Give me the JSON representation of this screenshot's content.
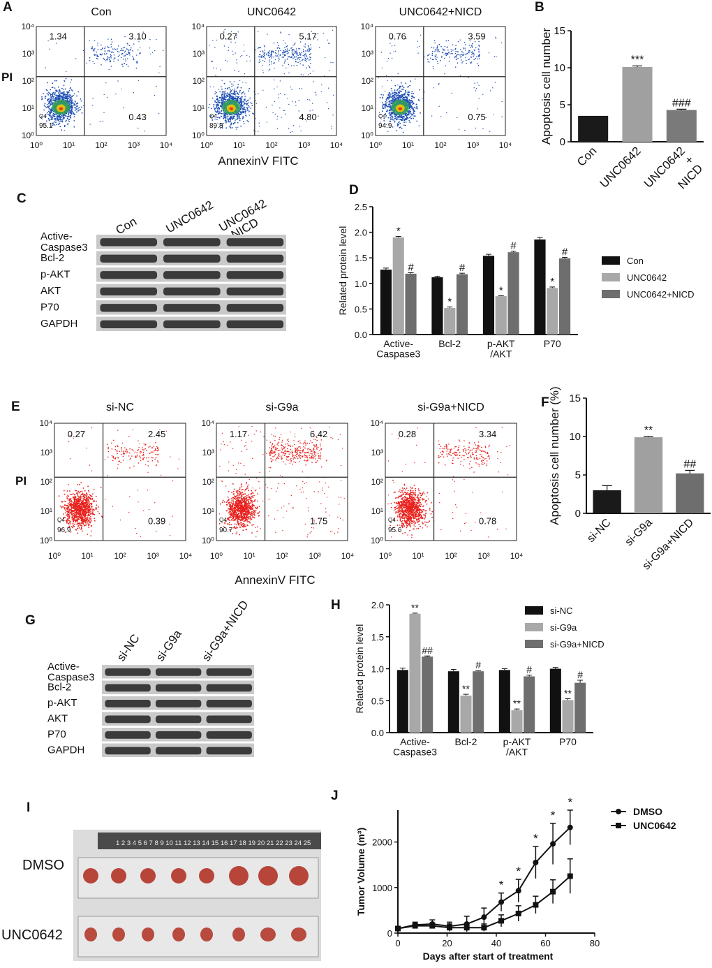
{
  "panel_letters": [
    "A",
    "B",
    "C",
    "D",
    "E",
    "F",
    "G",
    "H",
    "I",
    "J"
  ],
  "flow": {
    "A": {
      "ylabel": "PI",
      "xlabel": "AnnexinV   FITC",
      "color": "#1f4fb4",
      "plots": [
        {
          "title": "Con",
          "q_ul": "1.34",
          "q_ur": "3.10",
          "q_lr": "0.43",
          "q4_tag": "Q4",
          "q4_val": "95.1"
        },
        {
          "title": "UNC0642",
          "q_ul": "0.27",
          "q_ur": "5.17",
          "q_lr": "4.80",
          "q4_tag": "Q4",
          "q4_val": "89.8"
        },
        {
          "title": "UNC0642+NICD",
          "q_ul": "0.76",
          "q_ur": "3.59",
          "q_lr": "0.75",
          "q4_tag": "Q4",
          "q4_val": "94.9"
        }
      ]
    },
    "E": {
      "ylabel": "PI",
      "xlabel": "AnnexinV   FITC",
      "color": "#e8201c",
      "plots": [
        {
          "title": "si-NC",
          "q_ul": "0.27",
          "q_ur": "2.45",
          "q_lr": "0.39",
          "q4_tag": "Q4",
          "q4_val": "96.9"
        },
        {
          "title": "si-G9a",
          "q_ul": "1.17",
          "q_ur": "6.42",
          "q_lr": "1.75",
          "q4_tag": "Q4",
          "q4_val": "90.7"
        },
        {
          "title": "si-G9a+NICD",
          "q_ul": "0.28",
          "q_ur": "3.34",
          "q_lr": "0.78",
          "q4_tag": "Q4",
          "q4_val": "95.6"
        }
      ]
    },
    "xticks": [
      "10⁰",
      "10¹",
      "10²",
      "10³",
      "10⁴"
    ],
    "yticks": [
      "10⁰",
      "10¹",
      "10²",
      "10³",
      "10⁴"
    ]
  },
  "blots": {
    "C": {
      "lanes": [
        "Con",
        "UNC0642",
        "UNC0642\n+NICD"
      ],
      "rows": [
        "Active-\nCaspase3",
        "Bcl-2",
        "p-AKT",
        "AKT",
        "P70",
        "GAPDH"
      ]
    },
    "G": {
      "lanes": [
        "si-NC",
        "si-G9a",
        "si-G9a+NICD"
      ],
      "rows": [
        "Active-\nCaspase3",
        "Bcl-2",
        "p-AKT",
        "AKT",
        "P70",
        "GAPDH"
      ]
    }
  },
  "photo": {
    "rows": [
      "DMSO",
      "UNC0642"
    ],
    "ruler": "1 2 3 4 5 6 7 8 9 10 11 12 13 14 15 16 17 18 19 20 21 22 23 24 25"
  },
  "chart_data": [
    {
      "panel": "B",
      "type": "bar",
      "categories": [
        "Con",
        "UNC0642",
        "UNC0642\n+\nNICD"
      ],
      "values": [
        3.5,
        10.1,
        4.3
      ],
      "errors": [
        0,
        0.15,
        0.1
      ],
      "annotations": [
        "",
        "***",
        "###"
      ],
      "ylabel": "Apoptosis cell number",
      "ylim": [
        0,
        15
      ],
      "yticks": [
        0,
        5,
        10,
        15
      ],
      "colors": [
        "#1a1a1a",
        "#a0a0a0",
        "#7a7a7a"
      ]
    },
    {
      "panel": "D",
      "type": "bar",
      "categories": [
        "Active-\nCaspase3",
        "Bcl-2",
        "p-AKT\n/AKT",
        "P70"
      ],
      "series": [
        {
          "name": "Con",
          "values": [
            1.27,
            1.12,
            1.54,
            1.86
          ],
          "errors": [
            0.03,
            0.02,
            0.03,
            0.04
          ],
          "annotations": [
            "",
            "",
            "",
            ""
          ]
        },
        {
          "name": "UNC0642",
          "values": [
            1.9,
            0.52,
            0.75,
            0.91
          ],
          "errors": [
            0.02,
            0.02,
            0.01,
            0.02
          ],
          "annotations": [
            "*",
            "*",
            "*",
            "*"
          ]
        },
        {
          "name": "UNC0642+NICD",
          "values": [
            1.19,
            1.18,
            1.61,
            1.49
          ],
          "errors": [
            0.02,
            0.02,
            0.02,
            0.02
          ],
          "annotations": [
            "#",
            "#",
            "#",
            "#"
          ]
        }
      ],
      "ylabel": "Related protein level",
      "ylim": [
        0,
        2.5
      ],
      "yticks": [
        "0.0",
        "0.5",
        "1.0",
        "1.5",
        "2.0",
        "2.5"
      ],
      "colors": [
        "#111111",
        "#a8a8a8",
        "#6e6e6e"
      ]
    },
    {
      "panel": "F",
      "type": "bar",
      "categories": [
        "si-NC",
        "si-G9a",
        "si-G9a+NICD"
      ],
      "values": [
        3.0,
        9.9,
        5.2
      ],
      "errors": [
        0.6,
        0.1,
        0.4
      ],
      "annotations": [
        "",
        "**",
        "##"
      ],
      "ylabel": "Apoptosis cell number (%)",
      "ylim": [
        0,
        15
      ],
      "yticks": [
        0,
        5,
        10,
        15
      ],
      "colors": [
        "#1a1a1a",
        "#a0a0a0",
        "#6e6e6e"
      ]
    },
    {
      "panel": "H",
      "type": "bar",
      "categories": [
        "Active-\nCaspase3",
        "Bcl-2",
        "p-AKT\n/AKT",
        "P70"
      ],
      "series": [
        {
          "name": "si-NC",
          "values": [
            0.98,
            0.96,
            0.98,
            1.0
          ],
          "errors": [
            0.03,
            0.03,
            0.02,
            0.02
          ],
          "annotations": [
            "",
            "",
            "",
            ""
          ]
        },
        {
          "name": "si-G9a",
          "values": [
            1.86,
            0.58,
            0.35,
            0.51
          ],
          "errors": [
            0.01,
            0.02,
            0.02,
            0.02
          ],
          "annotations": [
            "**",
            "**",
            "**",
            "**"
          ]
        },
        {
          "name": "si-G9a+NICD",
          "values": [
            1.19,
            0.96,
            0.88,
            0.78
          ],
          "errors": [
            0.01,
            0.01,
            0.02,
            0.04
          ],
          "annotations": [
            "##",
            "#",
            "#",
            "#"
          ]
        }
      ],
      "ylabel": "Related protein level",
      "ylim": [
        0,
        2.0
      ],
      "yticks": [
        "0.0",
        "0.5",
        "1.0",
        "1.5",
        "2.0"
      ],
      "colors": [
        "#111111",
        "#a8a8a8",
        "#6e6e6e"
      ]
    },
    {
      "panel": "J",
      "type": "line",
      "x": [
        0,
        7,
        14,
        21,
        28,
        35,
        42,
        49,
        56,
        63,
        70
      ],
      "series": [
        {
          "name": "DMSO",
          "marker": "circle",
          "values": [
            100,
            180,
            200,
            150,
            200,
            350,
            680,
            930,
            1550,
            1960,
            2320
          ],
          "errors": [
            30,
            60,
            90,
            90,
            170,
            200,
            200,
            250,
            350,
            450,
            380
          ]
        },
        {
          "name": "UNC0642",
          "marker": "square",
          "values": [
            100,
            160,
            160,
            120,
            120,
            120,
            270,
            430,
            620,
            910,
            1250
          ],
          "errors": [
            30,
            50,
            60,
            80,
            90,
            80,
            130,
            170,
            190,
            260,
            380
          ]
        }
      ],
      "annotations_at_x": [
        42,
        49,
        56,
        63,
        70
      ],
      "annotation": "*",
      "xlabel": "Days after start of treatment",
      "ylabel": "Tumor Volume (m³)",
      "xlim": [
        0,
        80
      ],
      "ylim": [
        0,
        2700
      ],
      "xticks": [
        0,
        20,
        40,
        60,
        80
      ],
      "yticks": [
        0,
        1000,
        2000
      ]
    }
  ]
}
